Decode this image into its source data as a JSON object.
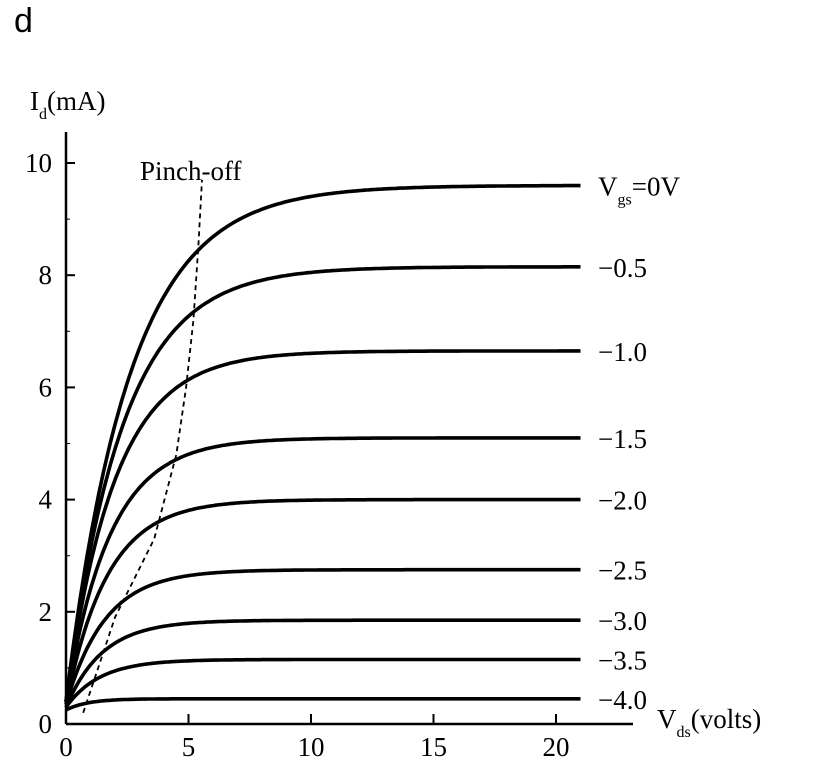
{
  "panel": {
    "label": "d"
  },
  "chart_data": {
    "type": "line",
    "title": "",
    "xlabel": "V_ds (volts)",
    "ylabel": "I_d (mA)",
    "xlabel_parts": {
      "main": "V",
      "sub": "ds",
      "rest": "(volts)"
    },
    "ylabel_parts": {
      "main": "I",
      "sub": "d",
      "rest": "(mA)"
    },
    "xlim": [
      0,
      22
    ],
    "ylim": [
      0,
      10.5
    ],
    "xticks": [
      0,
      5,
      10,
      15,
      20
    ],
    "yticks": [
      0,
      2,
      4,
      6,
      8,
      10
    ],
    "grid": false,
    "legend": "inline labels at right end of each curve",
    "annotation": {
      "text": "Pinch-off",
      "style": "dashed line",
      "points": [
        [
          0.7,
          0.2
        ],
        [
          2.0,
          1.9
        ],
        [
          3.6,
          3.3
        ],
        [
          4.5,
          4.8
        ],
        [
          4.9,
          6.0
        ],
        [
          5.2,
          7.2
        ],
        [
          5.4,
          8.5
        ],
        [
          5.55,
          9.7
        ]
      ]
    },
    "series": [
      {
        "name": "Vgs=0V",
        "label_main": "V",
        "label_sub": "gs",
        "label_rest": "=0V",
        "saturation": 9.6,
        "knee": 2.6,
        "i0": 0.4
      },
      {
        "name": "-0.5",
        "label_main": "−0.5",
        "saturation": 8.15,
        "knee": 2.3,
        "i0": 0.4
      },
      {
        "name": "-1.0",
        "label_main": "−1.0",
        "saturation": 6.65,
        "knee": 2.0,
        "i0": 0.4
      },
      {
        "name": "-1.5",
        "label_main": "−1.5",
        "saturation": 5.1,
        "knee": 1.8,
        "i0": 0.4
      },
      {
        "name": "-2.0",
        "label_main": "−2.0",
        "saturation": 4.0,
        "knee": 1.7,
        "i0": 0.35
      },
      {
        "name": "-2.5",
        "label_main": "−2.5",
        "saturation": 2.75,
        "knee": 1.6,
        "i0": 0.35
      },
      {
        "name": "-3.0",
        "label_main": "−3.0",
        "saturation": 1.85,
        "knee": 1.5,
        "i0": 0.3
      },
      {
        "name": "-3.5",
        "label_main": "−3.5",
        "saturation": 1.15,
        "knee": 1.4,
        "i0": 0.3
      },
      {
        "name": "-4.0",
        "label_main": "−4.0",
        "saturation": 0.45,
        "knee": 0.9,
        "i0": 0.25
      }
    ],
    "x_end": 21
  },
  "colors": {
    "ink": "#000000",
    "background": "#ffffff"
  }
}
